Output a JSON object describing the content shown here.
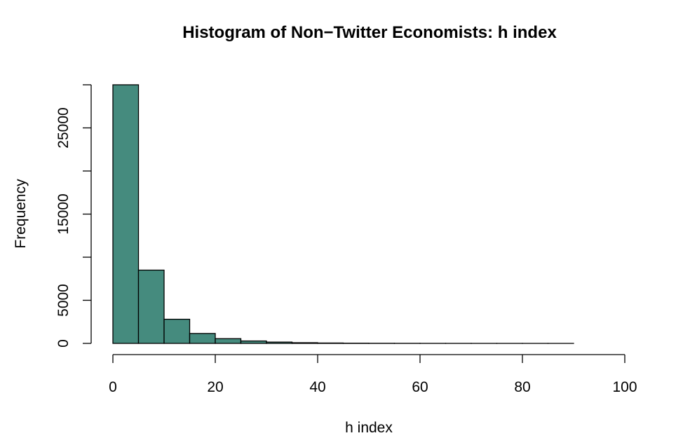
{
  "chart_data": {
    "type": "bar",
    "title": "Histogram of Non−Twitter Economists: h index",
    "xlabel": "h index",
    "ylabel": "Frequency",
    "bar_color": "#458b7e",
    "edge_color": "#000000",
    "bin_edges": [
      0,
      5,
      10,
      15,
      20,
      25,
      30,
      35,
      40,
      45,
      50,
      55,
      60,
      65,
      70,
      75,
      80,
      85,
      90
    ],
    "values": [
      30000,
      8500,
      2800,
      1150,
      550,
      280,
      150,
      80,
      45,
      25,
      15,
      10,
      6,
      4,
      3,
      2,
      1,
      1
    ],
    "xlim": [
      0,
      100
    ],
    "ylim": [
      0,
      30000
    ],
    "x_ticks": [
      "0",
      "20",
      "40",
      "60",
      "80",
      "100"
    ],
    "y_ticks": [
      "0",
      "5000",
      "15000",
      "25000"
    ],
    "y_minor_ticks": [
      10000,
      20000,
      30000
    ],
    "grid": false
  }
}
